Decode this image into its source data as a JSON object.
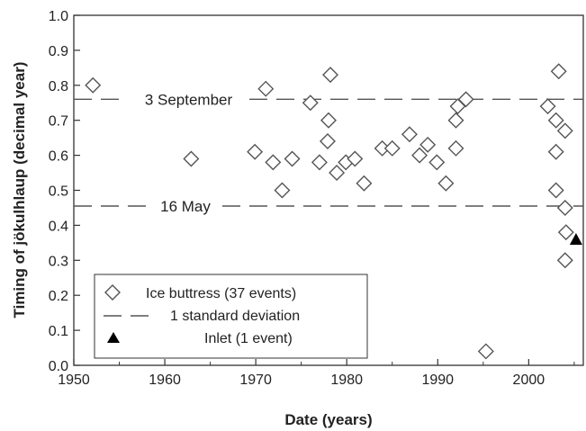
{
  "chart_data": {
    "type": "scatter",
    "xlabel": "Date (years)",
    "ylabel": "Timing of jökulhlaup (decimal year)",
    "xlim": [
      1950,
      2006
    ],
    "ylim": [
      0.0,
      1.0
    ],
    "x_ticks": [
      "1950",
      "1960",
      "1970",
      "1980",
      "1990",
      "2000"
    ],
    "y_ticks": [
      "0.0",
      "0.1",
      "0.2",
      "0.3",
      "0.4",
      "0.5",
      "0.6",
      "0.7",
      "0.8",
      "0.9",
      "1.0"
    ],
    "grid": false,
    "legend_position": "bottom-left",
    "series": [
      {
        "name": "Ice buttress (37 events)",
        "marker": "open-diamond",
        "color": "#555555",
        "points": [
          [
            1952.1,
            0.8
          ],
          [
            1962.9,
            0.59
          ],
          [
            1969.9,
            0.61
          ],
          [
            1971.1,
            0.79
          ],
          [
            1971.9,
            0.58
          ],
          [
            1972.9,
            0.5
          ],
          [
            1974.0,
            0.59
          ],
          [
            1976.0,
            0.75
          ],
          [
            1977.0,
            0.58
          ],
          [
            1977.9,
            0.64
          ],
          [
            1978.0,
            0.7
          ],
          [
            1978.2,
            0.83
          ],
          [
            1978.9,
            0.55
          ],
          [
            1979.9,
            0.58
          ],
          [
            1980.9,
            0.59
          ],
          [
            1981.9,
            0.52
          ],
          [
            1983.9,
            0.62
          ],
          [
            1985.0,
            0.62
          ],
          [
            1986.9,
            0.66
          ],
          [
            1988.0,
            0.6
          ],
          [
            1988.9,
            0.63
          ],
          [
            1989.9,
            0.58
          ],
          [
            1990.9,
            0.52
          ],
          [
            1992.0,
            0.62
          ],
          [
            1992.0,
            0.7
          ],
          [
            1992.2,
            0.74
          ],
          [
            1993.1,
            0.76
          ],
          [
            1995.3,
            0.04
          ],
          [
            2002.1,
            0.74
          ],
          [
            2003.0,
            0.7
          ],
          [
            2003.0,
            0.61
          ],
          [
            2003.0,
            0.5
          ],
          [
            2003.3,
            0.84
          ],
          [
            2004.0,
            0.67
          ],
          [
            2004.0,
            0.45
          ],
          [
            2004.1,
            0.38
          ],
          [
            2004.0,
            0.3
          ]
        ]
      },
      {
        "name": "Inlet (1 event)",
        "marker": "filled-triangle",
        "color": "#000000",
        "points": [
          [
            2005.2,
            0.36
          ]
        ]
      }
    ],
    "reference_lines": [
      {
        "y": 0.76,
        "label": "3 September",
        "style": "dashed",
        "color": "#555555"
      },
      {
        "y": 0.455,
        "label": "16 May",
        "style": "dashed",
        "color": "#555555"
      }
    ],
    "legend": [
      {
        "label": "Ice buttress (37 events)",
        "symbol": "open-diamond"
      },
      {
        "label": "1 standard deviation",
        "symbol": "dashed-line"
      },
      {
        "label": "Inlet (1 event)",
        "symbol": "filled-triangle"
      }
    ]
  }
}
